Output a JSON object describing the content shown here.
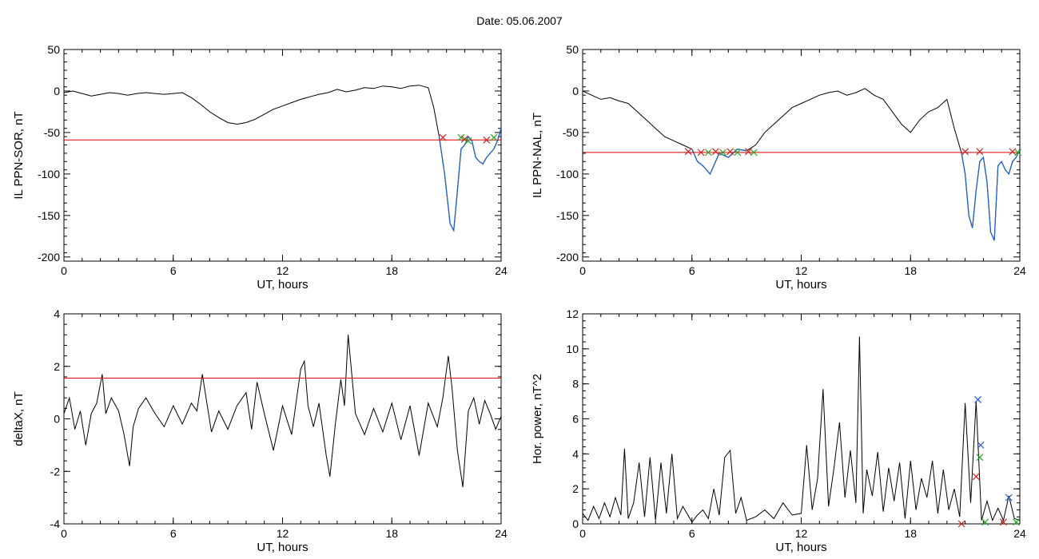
{
  "header": {
    "title": "Date:  05.06.2007"
  },
  "colors": {
    "trace": "#000000",
    "threshold": "#e00000",
    "highlight": "#1f5fcc",
    "marker_red": "#d02020",
    "marker_green": "#22aa22",
    "marker_blue": "#2255cc"
  },
  "chart_data": [
    {
      "type": "line",
      "title": "",
      "xlabel": "UT, hours",
      "ylabel": "IL PPN-SOR, nT",
      "xlim": [
        0,
        24
      ],
      "ylim": [
        -205,
        50
      ],
      "xticks": [
        "0",
        "6",
        "12",
        "18",
        "24"
      ],
      "yticks": [
        "50",
        "0",
        "-50",
        "-100",
        "-150",
        "-200"
      ],
      "threshold": -59,
      "series": [
        {
          "x": [
            0,
            0.5,
            1,
            1.5,
            2,
            2.5,
            3,
            3.5,
            4,
            4.5,
            5,
            5.5,
            6,
            6.5,
            7,
            7.5,
            8,
            8.5,
            9,
            9.5,
            10,
            10.5,
            11,
            11.5,
            12,
            12.5,
            13,
            13.5,
            14,
            14.5,
            15,
            15.5,
            16,
            16.5,
            17,
            17.5,
            18,
            18.5,
            19,
            19.5,
            20,
            20.3,
            20.6,
            20.9,
            21.2,
            21.4,
            21.6,
            21.8,
            22,
            22.2,
            22.4,
            22.6,
            22.8,
            23,
            23.2,
            23.4,
            23.6,
            23.8,
            24
          ],
          "y": [
            -2,
            0,
            -3,
            -6,
            -4,
            -2,
            -3,
            -5,
            -3,
            -2,
            -3,
            -4,
            -3,
            -2,
            -8,
            -16,
            -25,
            -32,
            -38,
            -40,
            -38,
            -34,
            -28,
            -22,
            -18,
            -14,
            -10,
            -7,
            -4,
            -2,
            2,
            -1,
            1,
            4,
            3,
            6,
            5,
            3,
            6,
            7,
            4,
            -20,
            -55,
            -100,
            -160,
            -168,
            -120,
            -70,
            -65,
            -55,
            -60,
            -80,
            -85,
            -88,
            -80,
            -75,
            -70,
            -60,
            -45
          ]
        }
      ],
      "highlight_from_x": 20.6,
      "markers": [
        {
          "x": 20.8,
          "y": -56,
          "color": "red"
        },
        {
          "x": 21.8,
          "y": -56,
          "color": "green"
        },
        {
          "x": 22.0,
          "y": -58,
          "color": "red"
        },
        {
          "x": 22.2,
          "y": -60,
          "color": "green"
        },
        {
          "x": 23.2,
          "y": -59,
          "color": "red"
        },
        {
          "x": 23.6,
          "y": -56,
          "color": "green"
        }
      ]
    },
    {
      "type": "line",
      "title": "",
      "xlabel": "UT, hours",
      "ylabel": "IL PPN-NAL, nT",
      "xlim": [
        0,
        24
      ],
      "ylim": [
        -205,
        50
      ],
      "xticks": [
        "0",
        "6",
        "12",
        "18",
        "24"
      ],
      "yticks": [
        "50",
        "0",
        "-50",
        "-100",
        "-150",
        "-200"
      ],
      "threshold": -74,
      "series": [
        {
          "x": [
            0,
            0.5,
            1,
            1.5,
            2,
            2.5,
            3,
            3.5,
            4,
            4.5,
            5,
            5.5,
            6,
            6.3,
            6.6,
            7,
            7.5,
            8,
            8.5,
            9,
            9.5,
            10,
            10.5,
            11,
            11.5,
            12,
            12.5,
            13,
            13.5,
            14,
            14.5,
            15,
            15.5,
            16,
            16.5,
            17,
            17.5,
            18,
            18.5,
            19,
            19.5,
            20,
            20.4,
            20.8,
            21,
            21.2,
            21.4,
            21.6,
            21.8,
            22,
            22.2,
            22.4,
            22.6,
            22.8,
            23,
            23.2,
            23.4,
            23.6,
            23.8,
            24
          ],
          "y": [
            0,
            -5,
            -10,
            -8,
            -12,
            -15,
            -25,
            -35,
            -45,
            -55,
            -60,
            -65,
            -70,
            -85,
            -90,
            -100,
            -75,
            -80,
            -70,
            -72,
            -65,
            -50,
            -40,
            -30,
            -20,
            -15,
            -10,
            -5,
            -2,
            0,
            -5,
            -2,
            3,
            -5,
            -10,
            -25,
            -40,
            -50,
            -35,
            -25,
            -20,
            -10,
            -45,
            -75,
            -100,
            -150,
            -165,
            -120,
            -85,
            -80,
            -110,
            -170,
            -180,
            -90,
            -85,
            -95,
            -100,
            -85,
            -80,
            -70
          ]
        }
      ],
      "highlight_from_x": 5.6,
      "highlight_gap": [
        9.4,
        20.6
      ],
      "markers": [
        {
          "x": 5.8,
          "y": -73,
          "color": "red"
        },
        {
          "x": 6.5,
          "y": -74,
          "color": "red"
        },
        {
          "x": 6.9,
          "y": -74,
          "color": "green"
        },
        {
          "x": 7.3,
          "y": -73,
          "color": "red"
        },
        {
          "x": 7.7,
          "y": -74,
          "color": "green"
        },
        {
          "x": 8.1,
          "y": -73,
          "color": "red"
        },
        {
          "x": 8.5,
          "y": -74,
          "color": "green"
        },
        {
          "x": 9.1,
          "y": -73,
          "color": "red"
        },
        {
          "x": 9.4,
          "y": -74,
          "color": "green"
        },
        {
          "x": 21.0,
          "y": -73,
          "color": "red"
        },
        {
          "x": 21.8,
          "y": -73,
          "color": "red"
        },
        {
          "x": 23.6,
          "y": -73,
          "color": "red"
        },
        {
          "x": 23.9,
          "y": -74,
          "color": "green"
        }
      ]
    },
    {
      "type": "line",
      "title": "",
      "xlabel": "UT, hours",
      "ylabel": "deltaX, nT",
      "xlim": [
        0,
        24
      ],
      "ylim": [
        -4,
        4
      ],
      "xticks": [
        "0",
        "6",
        "12",
        "18",
        "24"
      ],
      "yticks": [
        "4",
        "2",
        "0",
        "-2",
        "-4"
      ],
      "threshold": 1.55,
      "series": [
        {
          "x": [
            0,
            0.3,
            0.6,
            0.9,
            1.2,
            1.5,
            1.8,
            2.1,
            2.3,
            2.6,
            3,
            3.3,
            3.6,
            3.8,
            4.1,
            4.5,
            5,
            5.5,
            6,
            6.5,
            7,
            7.3,
            7.6,
            7.8,
            8.1,
            8.5,
            9,
            9.5,
            10,
            10.3,
            10.6,
            11,
            11.5,
            12,
            12.5,
            13,
            13.2,
            13.4,
            13.7,
            14,
            14.4,
            14.6,
            14.9,
            15.2,
            15.4,
            15.6,
            16,
            16.5,
            17,
            17.5,
            18,
            18.5,
            19,
            19.5,
            20,
            20.5,
            20.8,
            21.1,
            21.3,
            21.6,
            21.9,
            22.2,
            22.5,
            22.8,
            23.1,
            23.4,
            23.7,
            24
          ],
          "y": [
            0.2,
            0.8,
            -0.4,
            0.3,
            -1.0,
            0.2,
            0.6,
            1.7,
            0.2,
            0.8,
            0.3,
            -0.6,
            -1.8,
            -0.3,
            0.4,
            0.8,
            0.2,
            -0.3,
            0.5,
            -0.2,
            0.6,
            0.3,
            1.7,
            0.8,
            -0.5,
            0.3,
            -0.4,
            0.5,
            1.0,
            -0.4,
            1.4,
            0.2,
            -1.2,
            0.5,
            -0.6,
            1.9,
            2.2,
            0.5,
            -0.3,
            0.6,
            -1.4,
            -2.2,
            -0.2,
            1.5,
            0.5,
            3.2,
            0.2,
            -0.6,
            0.4,
            -0.5,
            0.6,
            -0.8,
            0.5,
            -1.4,
            0.6,
            -0.3,
            0.8,
            2.4,
            1.2,
            -1.2,
            -2.6,
            0.3,
            0.8,
            -0.2,
            0.7,
            0.2,
            -0.4,
            0.1
          ]
        }
      ]
    },
    {
      "type": "line",
      "title": "",
      "xlabel": "UT, hours",
      "ylabel": "Hor. power, nT^2",
      "xlim": [
        0,
        24
      ],
      "ylim": [
        0,
        12
      ],
      "xticks": [
        "0",
        "6",
        "12",
        "18",
        "24"
      ],
      "yticks": [
        "12",
        "10",
        "8",
        "6",
        "4",
        "2",
        "0"
      ],
      "series": [
        {
          "x": [
            0,
            0.3,
            0.6,
            0.9,
            1.2,
            1.5,
            1.8,
            2.1,
            2.3,
            2.5,
            2.8,
            3.1,
            3.4,
            3.7,
            4,
            4.3,
            4.6,
            4.9,
            5.2,
            5.5,
            6,
            6.3,
            6.6,
            6.9,
            7.2,
            7.5,
            7.8,
            8.1,
            8.4,
            8.7,
            9,
            9.5,
            10,
            10.5,
            11,
            11.5,
            12,
            12.3,
            12.6,
            12.9,
            13.2,
            13.5,
            13.8,
            14.1,
            14.4,
            14.7,
            15,
            15.2,
            15.4,
            15.6,
            15.9,
            16.2,
            16.5,
            16.8,
            17.1,
            17.4,
            17.7,
            18,
            18.3,
            18.6,
            18.9,
            19.2,
            19.5,
            19.8,
            20.1,
            20.4,
            20.7,
            21,
            21.3,
            21.6,
            21.9,
            22.2,
            22.5,
            22.8,
            23.1,
            23.4,
            23.7,
            24
          ],
          "y": [
            0.6,
            0.2,
            1.0,
            0.3,
            1.2,
            0.4,
            1.5,
            0.5,
            4.3,
            0.3,
            1.2,
            3.5,
            0.4,
            3.8,
            0.2,
            3.5,
            0.6,
            4.0,
            0.3,
            1.0,
            0.1,
            0.5,
            0.8,
            0.3,
            2.0,
            0.5,
            3.8,
            4.2,
            0.6,
            1.5,
            0.2,
            0.4,
            0.8,
            0.3,
            1.2,
            0.5,
            0.6,
            4.5,
            0.8,
            2.6,
            7.7,
            1.0,
            3.2,
            5.8,
            1.5,
            4.2,
            1.2,
            10.7,
            0.6,
            3.1,
            1.6,
            4.1,
            0.7,
            3.2,
            1.3,
            3.5,
            0.3,
            3.6,
            0.8,
            2.6,
            1.5,
            3.6,
            0.6,
            3.1,
            0.8,
            2.0,
            0.4,
            6.9,
            1.2,
            7.0,
            0.2,
            1.3,
            0.2,
            0.9,
            0.2,
            1.6,
            0.3,
            0.2
          ]
        }
      ],
      "markers": [
        {
          "x": 20.8,
          "y": 0.0,
          "color": "red"
        },
        {
          "x": 21.6,
          "y": 2.7,
          "color": "red"
        },
        {
          "x": 21.7,
          "y": 7.1,
          "color": "blue"
        },
        {
          "x": 21.8,
          "y": 3.8,
          "color": "green"
        },
        {
          "x": 21.85,
          "y": 4.5,
          "color": "blue"
        },
        {
          "x": 22.1,
          "y": 0.1,
          "color": "green"
        },
        {
          "x": 23.1,
          "y": 0.1,
          "color": "red"
        },
        {
          "x": 23.4,
          "y": 1.5,
          "color": "blue"
        },
        {
          "x": 23.8,
          "y": 0.1,
          "color": "green"
        }
      ]
    }
  ]
}
